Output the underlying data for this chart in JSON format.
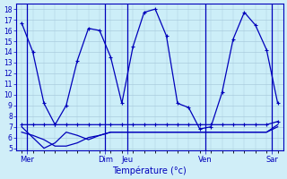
{
  "background_color": "#d0eef8",
  "plot_bg": "#cceef8",
  "line_color": "#0000bb",
  "grid_color": "#aaccdd",
  "xlabel": "Température (°c)",
  "ylim": [
    5,
    18
  ],
  "yticks": [
    5,
    6,
    7,
    8,
    9,
    10,
    11,
    12,
    13,
    14,
    15,
    16,
    17,
    18
  ],
  "day_labels": [
    "Mer",
    "Dim",
    "Jeu",
    "Ven",
    "Sar"
  ],
  "day_positions": [
    0.5,
    7.5,
    9.5,
    16.5,
    22.5
  ],
  "n_points": 24,
  "series": {
    "main": [
      16.7,
      14.0,
      9.2,
      7.2,
      9.0,
      13.2,
      16.2,
      16.0,
      13.5,
      9.2,
      14.5,
      17.7,
      18.0,
      15.5,
      9.2,
      8.8,
      6.8,
      7.0,
      10.2,
      15.2,
      17.7,
      16.5,
      14.2,
      9.2
    ],
    "flat1": [
      7.2,
      7.2,
      7.2,
      7.2,
      7.2,
      7.2,
      7.2,
      7.2,
      7.2,
      7.2,
      7.2,
      7.2,
      7.2,
      7.2,
      7.2,
      7.2,
      7.2,
      7.2,
      7.2,
      7.2,
      7.2,
      7.2,
      7.2,
      7.5
    ],
    "flat2": [
      6.5,
      6.2,
      5.8,
      5.2,
      5.2,
      5.5,
      6.0,
      6.2,
      6.5,
      6.5,
      6.5,
      6.5,
      6.5,
      6.5,
      6.5,
      6.5,
      6.5,
      6.5,
      6.5,
      6.5,
      6.5,
      6.5,
      6.5,
      7.2
    ],
    "flat3": [
      7.0,
      6.0,
      5.0,
      5.5,
      6.5,
      6.2,
      5.8,
      6.2,
      6.5,
      6.5,
      6.5,
      6.5,
      6.5,
      6.5,
      6.5,
      6.5,
      6.5,
      6.5,
      6.5,
      6.5,
      6.5,
      6.5,
      6.5,
      7.0
    ]
  },
  "marker_indices": {
    "main": [
      0,
      2,
      4,
      5,
      6,
      7,
      8,
      9,
      11,
      12,
      13,
      14,
      15,
      16,
      18,
      19,
      20,
      21,
      22,
      23
    ],
    "flat1": [
      0,
      3,
      6,
      9,
      12,
      15,
      18,
      21,
      23
    ],
    "flat2": [
      0,
      3,
      6,
      9,
      16,
      23
    ],
    "flat3": [
      0,
      2,
      4,
      6,
      9,
      16,
      23
    ]
  }
}
